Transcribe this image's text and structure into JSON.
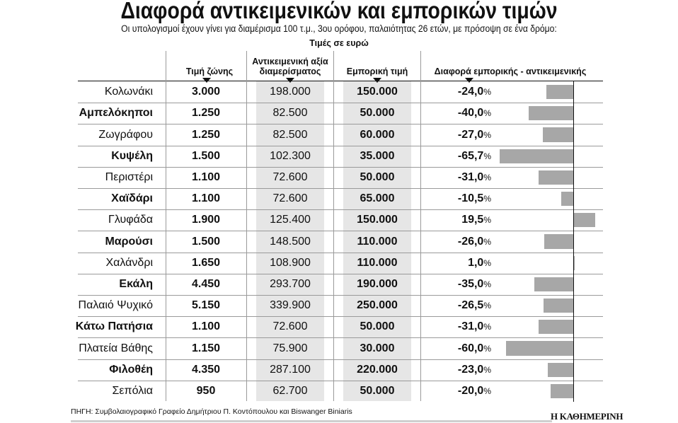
{
  "title": "Διαφορά αντικειμενικών και εμπορικών τιμών",
  "subtitle": "Οι υπολογισμοί έχουν γίνει για διαμέρισμα 100 τ.μ., 3ου ορόφου, παλαιότητας 26 ετών, με πρόσοψη σε ένα δρόμο:",
  "units": "Τιμές σε ευρώ",
  "source": "ΠΗΓΗ: Συμβολαιογραφικό Γραφείο Δημήτριου Π. Κοντόπουλου και Biswanger Biniaris",
  "brand": "Η ΚΑΘΗΜΕΡΙΝΗ",
  "columns": {
    "zone": "Τιμή ζώνης",
    "objective_line1": "Αντικειμενική αξία",
    "objective_line2": "διαμερίσματος",
    "market": "Εμπορική τιμή",
    "diff": "Διαφορά εμπορικής - αντικειμενικής"
  },
  "colors": {
    "bar": "#a7a7a7",
    "shade": "#e6e6e6",
    "text": "#111111"
  },
  "chart_data": {
    "type": "table",
    "columns": [
      "",
      "Τιμή ζώνης",
      "Αντικειμενική αξία διαμερίσματος",
      "Εμπορική τιμή",
      "Διαφορά εμπορικής - αντικειμενικής"
    ],
    "rows": [
      {
        "area": "Κολωνάκι",
        "bold": false,
        "zone": "3.000",
        "objective": "198.000",
        "market": "150.000",
        "diff_label": "-24,0",
        "diff": -24.0
      },
      {
        "area": "Αμπελόκηποι",
        "bold": true,
        "zone": "1.250",
        "objective": "82.500",
        "market": "50.000",
        "diff_label": "-40,0",
        "diff": -40.0
      },
      {
        "area": "Ζωγράφου",
        "bold": false,
        "zone": "1.250",
        "objective": "82.500",
        "market": "60.000",
        "diff_label": "-27,0",
        "diff": -27.0
      },
      {
        "area": "Κυψέλη",
        "bold": true,
        "zone": "1.500",
        "objective": "102.300",
        "market": "35.000",
        "diff_label": "-65,7",
        "diff": -65.7
      },
      {
        "area": "Περιστέρι",
        "bold": false,
        "zone": "1.100",
        "objective": "72.600",
        "market": "50.000",
        "diff_label": "-31,0",
        "diff": -31.0
      },
      {
        "area": "Χαϊδάρι",
        "bold": true,
        "zone": "1.100",
        "objective": "72.600",
        "market": "65.000",
        "diff_label": "-10,5",
        "diff": -10.5
      },
      {
        "area": "Γλυφάδα",
        "bold": false,
        "zone": "1.900",
        "objective": "125.400",
        "market": "150.000",
        "diff_label": "19,5",
        "diff": 19.5
      },
      {
        "area": "Μαρούσι",
        "bold": true,
        "zone": "1.500",
        "objective": "148.500",
        "market": "110.000",
        "diff_label": "-26,0",
        "diff": -26.0
      },
      {
        "area": "Χαλάνδρι",
        "bold": false,
        "zone": "1.650",
        "objective": "108.900",
        "market": "110.000",
        "diff_label": "1,0",
        "diff": 1.0
      },
      {
        "area": "Εκάλη",
        "bold": true,
        "zone": "4.450",
        "objective": "293.700",
        "market": "190.000",
        "diff_label": "-35,0",
        "diff": -35.0
      },
      {
        "area": "Παλαιό Ψυχικό",
        "bold": false,
        "zone": "5.150",
        "objective": "339.900",
        "market": "250.000",
        "diff_label": "-26,5",
        "diff": -26.5
      },
      {
        "area": "Κάτω Πατήσια",
        "bold": true,
        "zone": "1.100",
        "objective": "72.600",
        "market": "50.000",
        "diff_label": "-31,0",
        "diff": -31.0
      },
      {
        "area": "Πλατεία Βάθης",
        "bold": false,
        "zone": "1.150",
        "objective": "75.900",
        "market": "30.000",
        "diff_label": "-60,0",
        "diff": -60.0
      },
      {
        "area": "Φιλοθέη",
        "bold": true,
        "zone": "4.350",
        "objective": "287.100",
        "market": "220.000",
        "diff_label": "-23,0",
        "diff": -23.0
      },
      {
        "area": "Σεπόλια",
        "bold": false,
        "zone": "950",
        "objective": "62.700",
        "market": "50.000",
        "diff_label": "-20,0",
        "diff": -20.0
      }
    ],
    "pct_sign": "%"
  }
}
